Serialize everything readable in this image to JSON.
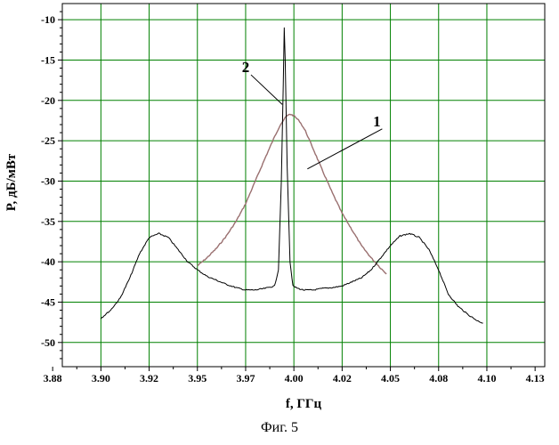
{
  "chart_data": {
    "type": "line",
    "xlabel": "f, ГГц",
    "ylabel": "P, дБ/мВт",
    "caption": "Фиг. 5",
    "xlim": [
      3.88,
      4.13
    ],
    "ylim": [
      -53,
      -8
    ],
    "x_ticks": [
      "3.88",
      "3.90",
      "3.92",
      "3.95",
      "3.97",
      "4.00",
      "4.02",
      "4.05",
      "4.08",
      "4.10",
      "4.13"
    ],
    "x_tick_values": [
      3.875,
      3.9,
      3.925,
      3.95,
      3.975,
      4.0,
      4.025,
      4.05,
      4.075,
      4.1,
      4.125
    ],
    "y_ticks": [
      -10,
      -15,
      -20,
      -25,
      -30,
      -35,
      -40,
      -45,
      -50
    ],
    "grid": true,
    "grid_color": "#008000",
    "series": [
      {
        "name": "1",
        "color": "#9a7070",
        "x": [
          3.95,
          3.955,
          3.96,
          3.965,
          3.97,
          3.975,
          3.98,
          3.985,
          3.99,
          3.993,
          3.996,
          3.998,
          4.0,
          4.003,
          4.006,
          4.01,
          4.015,
          4.02,
          4.025,
          4.03,
          4.035,
          4.04,
          4.045,
          4.048
        ],
        "y": [
          -40.5,
          -39.5,
          -38.3,
          -36.8,
          -35.0,
          -32.8,
          -30.0,
          -27.2,
          -24.5,
          -23.0,
          -22.0,
          -21.7,
          -21.9,
          -22.6,
          -23.8,
          -26.0,
          -28.8,
          -31.5,
          -34.0,
          -36.0,
          -38.0,
          -39.5,
          -40.8,
          -41.5
        ]
      },
      {
        "name": "2",
        "color": "#000000",
        "x": [
          3.9,
          3.905,
          3.91,
          3.915,
          3.92,
          3.925,
          3.93,
          3.935,
          3.94,
          3.945,
          3.95,
          3.955,
          3.96,
          3.965,
          3.97,
          3.975,
          3.98,
          3.985,
          3.99,
          3.992,
          3.9935,
          3.9945,
          3.995,
          3.9955,
          3.9965,
          3.998,
          3.9995,
          4.002,
          4.005,
          4.01,
          4.015,
          4.02,
          4.025,
          4.03,
          4.035,
          4.04,
          4.045,
          4.05,
          4.055,
          4.06,
          4.065,
          4.07,
          4.075,
          4.08,
          4.085,
          4.09,
          4.095,
          4.098
        ],
        "y": [
          -47.0,
          -46.0,
          -44.5,
          -42.0,
          -39.0,
          -37.0,
          -36.5,
          -37.0,
          -38.5,
          -40.0,
          -41.0,
          -41.8,
          -42.3,
          -42.8,
          -43.2,
          -43.5,
          -43.5,
          -43.3,
          -43.0,
          -41.0,
          -30.0,
          -18.0,
          -11.0,
          -15.0,
          -28.0,
          -40.0,
          -43.0,
          -43.3,
          -43.5,
          -43.5,
          -43.3,
          -43.2,
          -43.0,
          -42.5,
          -42.0,
          -41.0,
          -39.5,
          -38.0,
          -36.8,
          -36.5,
          -37.0,
          -38.5,
          -41.0,
          -44.0,
          -45.5,
          -46.5,
          -47.3,
          -47.6
        ]
      }
    ],
    "annotations": [
      {
        "text": "2",
        "x": 3.975,
        "y": -16.5,
        "target_x": 3.994,
        "target_y": -20.5
      },
      {
        "text": "1",
        "x": 4.043,
        "y": -23.2,
        "target_x": 4.007,
        "target_y": -28.5
      }
    ]
  }
}
